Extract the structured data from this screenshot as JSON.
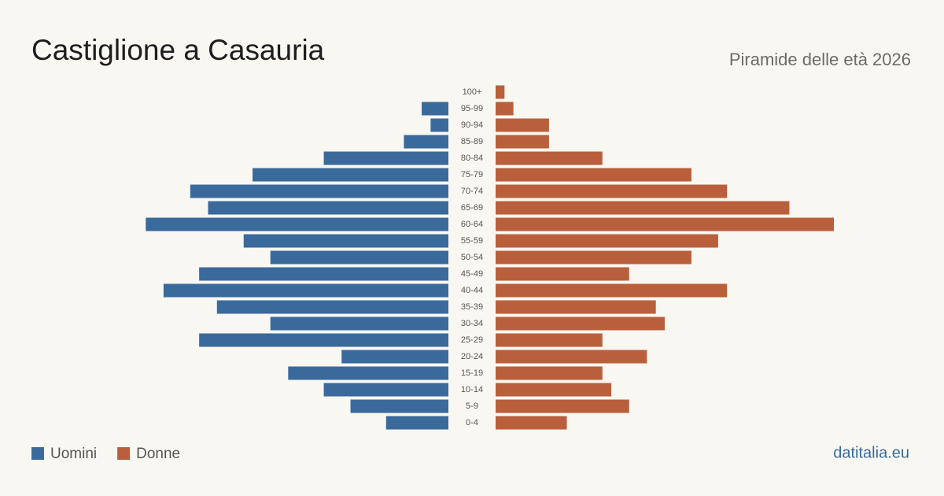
{
  "chart_data": {
    "type": "pyramid",
    "title": "Castiglione a Casauria",
    "subtitle": "Piramide delle età 2026",
    "source": "datitalia.eu",
    "categories": [
      "100+",
      "95-99",
      "90-94",
      "85-89",
      "80-84",
      "75-79",
      "70-74",
      "65-69",
      "60-64",
      "55-59",
      "50-54",
      "45-49",
      "40-44",
      "35-39",
      "30-34",
      "25-29",
      "20-24",
      "15-19",
      "10-14",
      "5-9",
      "0-4"
    ],
    "series": [
      {
        "name": "Uomini",
        "color": "#3a6a9b",
        "values": [
          0,
          3,
          2,
          5,
          14,
          22,
          29,
          27,
          34,
          23,
          20,
          28,
          32,
          26,
          20,
          28,
          12,
          18,
          14,
          11,
          7
        ]
      },
      {
        "name": "Donne",
        "color": "#b95f3c",
        "values": [
          1,
          2,
          6,
          6,
          12,
          22,
          26,
          33,
          38,
          25,
          22,
          15,
          26,
          18,
          19,
          12,
          17,
          12,
          13,
          15,
          8
        ]
      }
    ]
  }
}
